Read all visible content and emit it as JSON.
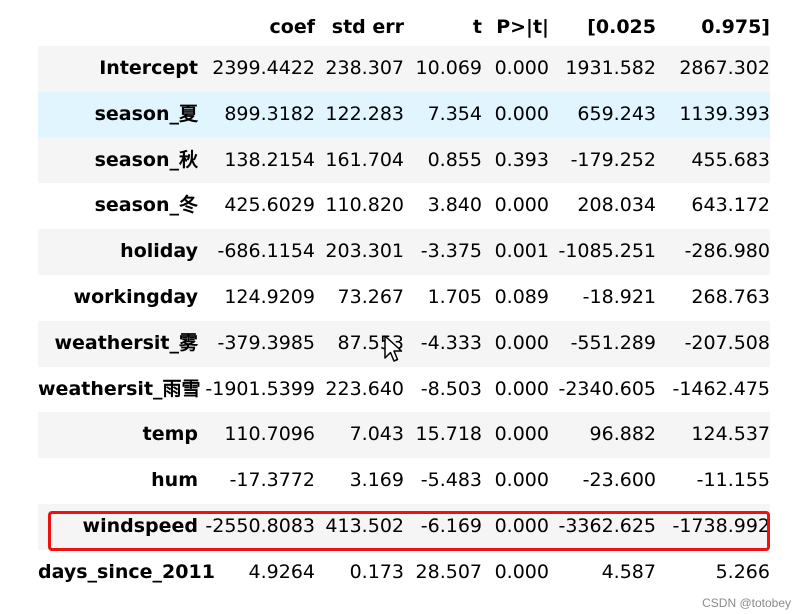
{
  "table": {
    "columns": [
      "",
      "coef",
      "std err",
      "t",
      "P>|t|",
      "[0.025",
      "0.975]"
    ],
    "rows": [
      {
        "name": "Intercept",
        "coef": "2399.4422",
        "std_err": "238.307",
        "t": "10.069",
        "p": "0.000",
        "ci_low": "1931.582",
        "ci_high": "2867.302"
      },
      {
        "name": "season_夏",
        "coef": "899.3182",
        "std_err": "122.283",
        "t": "7.354",
        "p": "0.000",
        "ci_low": "659.243",
        "ci_high": "1139.393"
      },
      {
        "name": "season_秋",
        "coef": "138.2154",
        "std_err": "161.704",
        "t": "0.855",
        "p": "0.393",
        "ci_low": "-179.252",
        "ci_high": "455.683"
      },
      {
        "name": "season_冬",
        "coef": "425.6029",
        "std_err": "110.820",
        "t": "3.840",
        "p": "0.000",
        "ci_low": "208.034",
        "ci_high": "643.172"
      },
      {
        "name": "holiday",
        "coef": "-686.1154",
        "std_err": "203.301",
        "t": "-3.375",
        "p": "0.001",
        "ci_low": "-1085.251",
        "ci_high": "-286.980"
      },
      {
        "name": "workingday",
        "coef": "124.9209",
        "std_err": "73.267",
        "t": "1.705",
        "p": "0.089",
        "ci_low": "-18.921",
        "ci_high": "268.763"
      },
      {
        "name": "weathersit_雾",
        "coef": "-379.3985",
        "std_err": "87.553",
        "t": "-4.333",
        "p": "0.000",
        "ci_low": "-551.289",
        "ci_high": "-207.508"
      },
      {
        "name": "weathersit_雨雪",
        "coef": "-1901.5399",
        "std_err": "223.640",
        "t": "-8.503",
        "p": "0.000",
        "ci_low": "-2340.605",
        "ci_high": "-1462.475"
      },
      {
        "name": "temp",
        "coef": "110.7096",
        "std_err": "7.043",
        "t": "15.718",
        "p": "0.000",
        "ci_low": "96.882",
        "ci_high": "124.537"
      },
      {
        "name": "hum",
        "coef": "-17.3772",
        "std_err": "3.169",
        "t": "-5.483",
        "p": "0.000",
        "ci_low": "-23.600",
        "ci_high": "-11.155"
      },
      {
        "name": "windspeed",
        "coef": "-2550.8083",
        "std_err": "413.502",
        "t": "-6.169",
        "p": "0.000",
        "ci_low": "-3362.625",
        "ci_high": "-1738.992"
      },
      {
        "name": "days_since_2011",
        "coef": "4.9264",
        "std_err": "0.173",
        "t": "28.507",
        "p": "0.000",
        "ci_low": "4.587",
        "ci_high": "5.266"
      }
    ],
    "hovered_row": "season_夏",
    "highlighted_row": "windspeed"
  },
  "colors": {
    "stripe": "#f5f5f5",
    "hover": "#e1f5fe",
    "highlight_border": "#ee1111"
  },
  "cursor_icon": "arrow-pointer-icon",
  "watermark": "CSDN @totobey"
}
